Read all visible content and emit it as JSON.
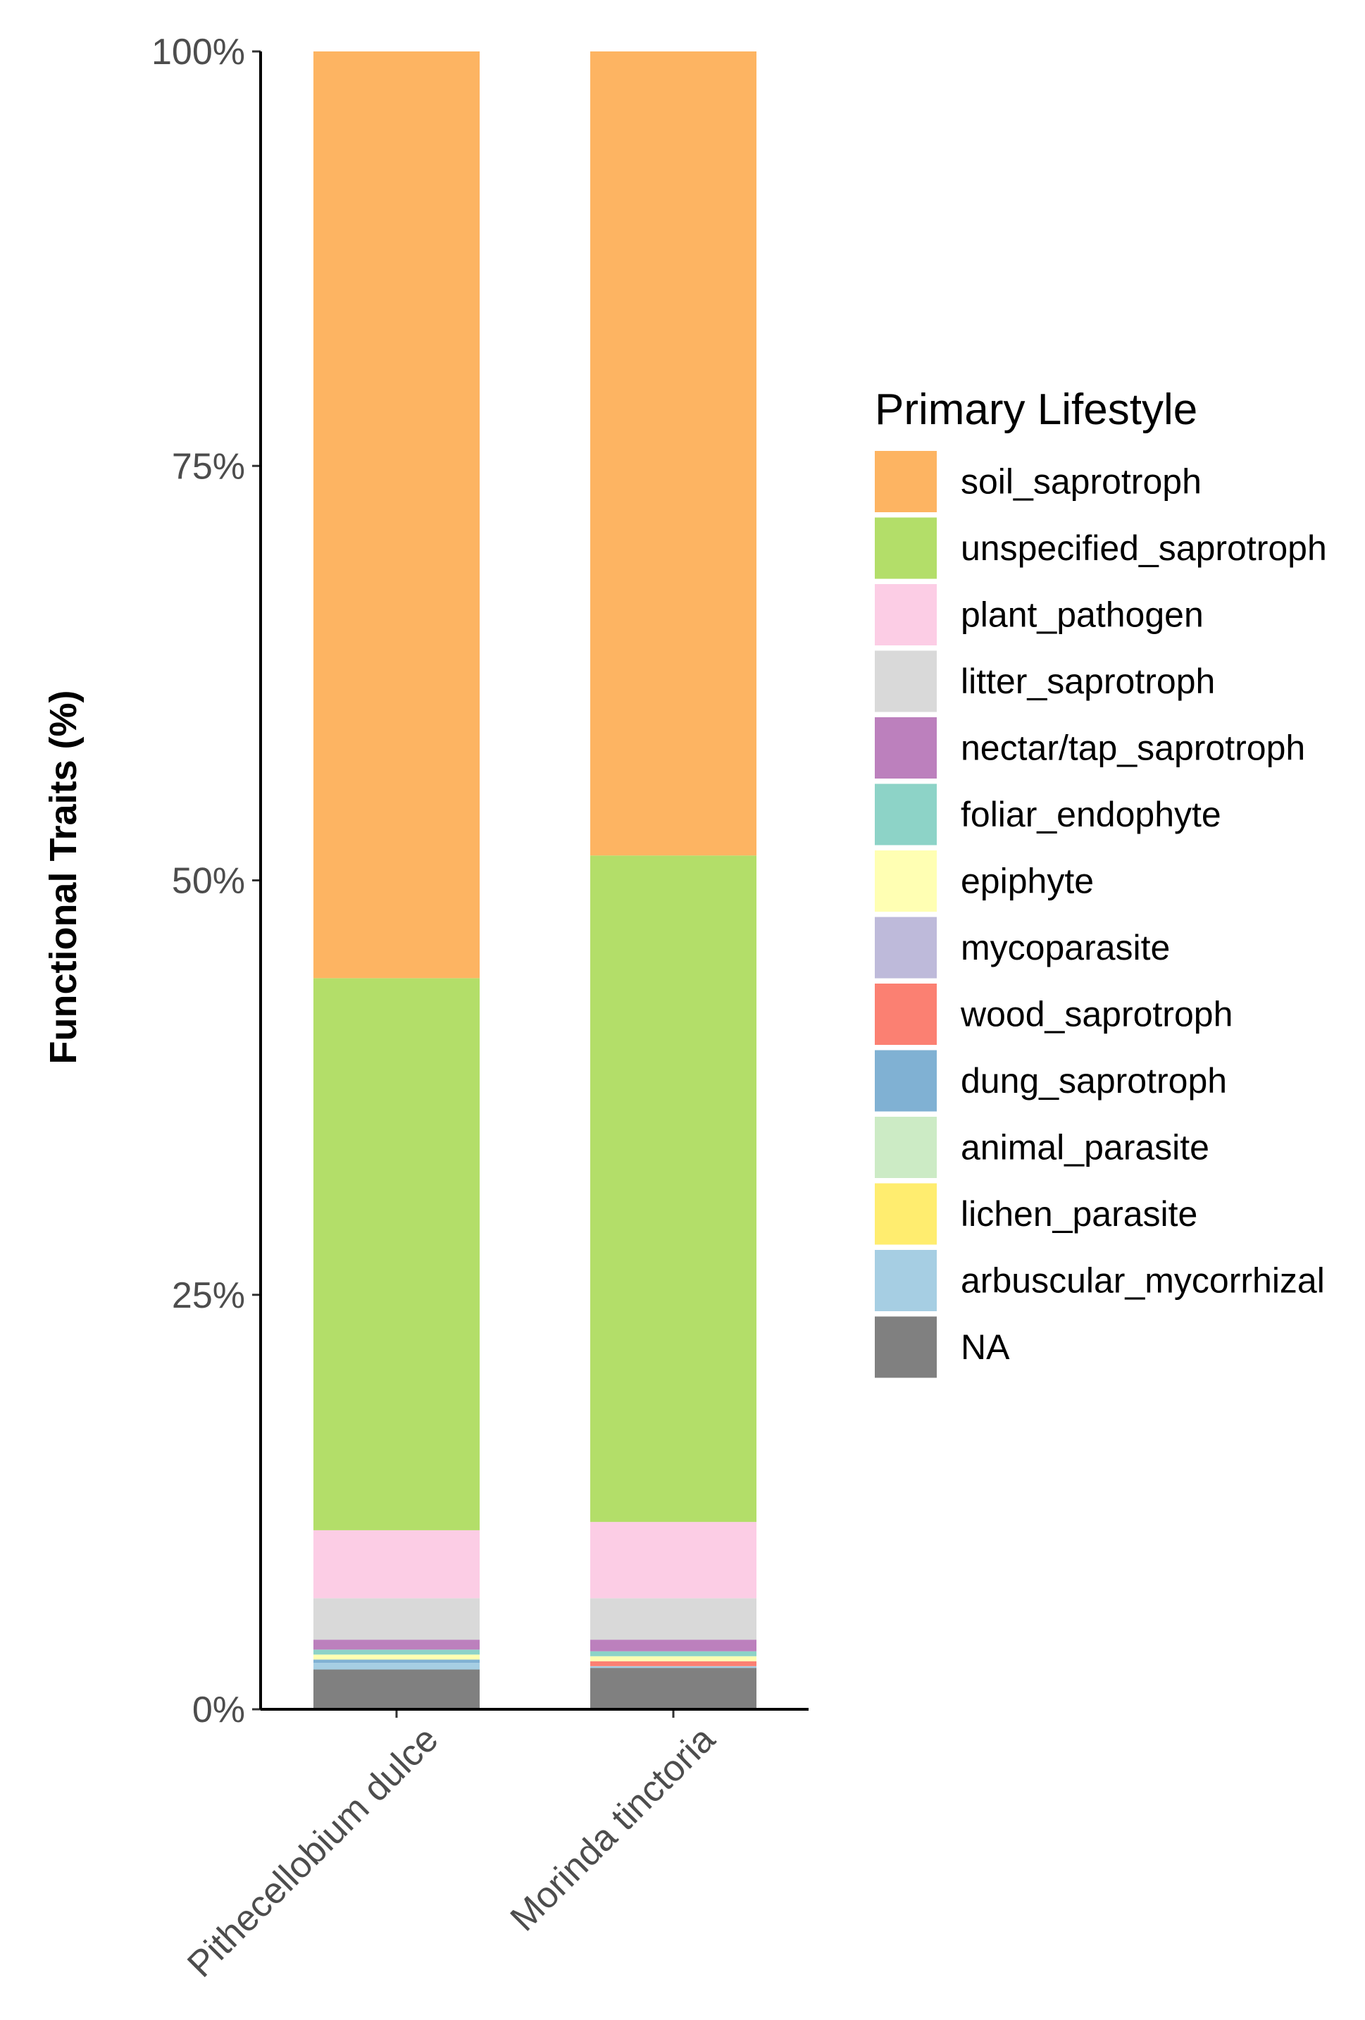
{
  "chart_data": {
    "type": "bar",
    "stacked": true,
    "percent": true,
    "categories": [
      "Pithecellobium dulce",
      "Morinda tinctoria"
    ],
    "ylabel": "Functional Traits (%)",
    "xlabel": "",
    "ylim": [
      0,
      100
    ],
    "yticks": [
      0,
      25,
      50,
      75,
      100
    ],
    "ytick_labels": [
      "0%",
      "25%",
      "50%",
      "75%",
      "100%"
    ],
    "legend": {
      "title": "Primary Lifestyle",
      "position": "right"
    },
    "grid": false,
    "series": [
      {
        "name": "NA",
        "color": "#808080",
        "values": [
          2.4,
          2.5
        ]
      },
      {
        "name": "arbuscular_mycorrhizal",
        "color": "#A6CEE3",
        "values": [
          0.4,
          0.1
        ]
      },
      {
        "name": "lichen_parasite",
        "color": "#FFED6F",
        "values": [
          0.0,
          0.0
        ]
      },
      {
        "name": "animal_parasite",
        "color": "#CCEBC5",
        "values": [
          0.0,
          0.0
        ]
      },
      {
        "name": "dung_saprotroph",
        "color": "#80B1D3",
        "values": [
          0.2,
          0.0
        ]
      },
      {
        "name": "wood_saprotroph",
        "color": "#FB8072",
        "values": [
          0.0,
          0.3
        ]
      },
      {
        "name": "mycoparasite",
        "color": "#BEBADA",
        "values": [
          0.0,
          0.0
        ]
      },
      {
        "name": "epiphyte",
        "color": "#FFFFB3",
        "values": [
          0.3,
          0.3
        ]
      },
      {
        "name": "foliar_endophyte",
        "color": "#8DD3C7",
        "values": [
          0.3,
          0.3
        ]
      },
      {
        "name": "nectar/tap_saprotroph",
        "color": "#BC80BD",
        "values": [
          0.6,
          0.7
        ]
      },
      {
        "name": "litter_saprotroph",
        "color": "#D9D9D9",
        "values": [
          2.5,
          2.5
        ]
      },
      {
        "name": "plant_pathogen",
        "color": "#FCCDE5",
        "values": [
          4.1,
          4.6
        ]
      },
      {
        "name": "unspecified_saprotroph",
        "color": "#B3DE69",
        "values": [
          33.3,
          40.2
        ]
      },
      {
        "name": "soil_saprotroph",
        "color": "#FDB462",
        "values": [
          55.9,
          48.5
        ]
      }
    ],
    "legend_order": [
      "soil_saprotroph",
      "unspecified_saprotroph",
      "plant_pathogen",
      "litter_saprotroph",
      "nectar/tap_saprotroph",
      "foliar_endophyte",
      "epiphyte",
      "mycoparasite",
      "wood_saprotroph",
      "dung_saprotroph",
      "animal_parasite",
      "lichen_parasite",
      "arbuscular_mycorrhizal",
      "NA"
    ]
  }
}
